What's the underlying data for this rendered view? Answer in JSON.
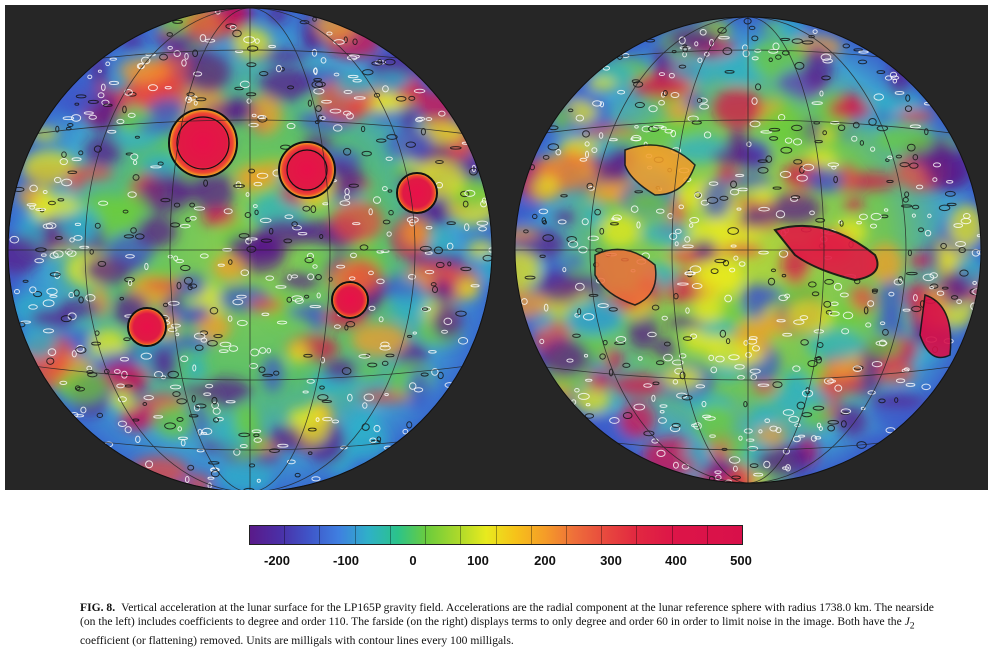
{
  "figure": {
    "colorbar": {
      "ticks": [
        "-200",
        "-100",
        "0",
        "100",
        "200",
        "300",
        "400",
        "500"
      ],
      "colors": [
        "#5a1a8a",
        "#3f55c8",
        "#2fb0c8",
        "#6ccc3c",
        "#e8ea1e",
        "#f59c28",
        "#e84a3e",
        "#d8104a"
      ]
    },
    "caption": {
      "label": "FIG. 8.",
      "text_before_j2": "Vertical acceleration at the lunar surface for the LP165P gravity field. Accelerations are the radial component at the lunar reference sphere with radius 1738.0 km. The nearside (on the left) includes coefficients to degree and order 110. The farside (on the right) displays terms to only degree and order 60 in order to limit noise in the image. Both have the ",
      "j2_symbol": "J",
      "j2_subscript": "2",
      "text_after_j2": " coefficient (or flattening) removed. Units are milligals with contour lines every 100 milligals."
    }
  }
}
